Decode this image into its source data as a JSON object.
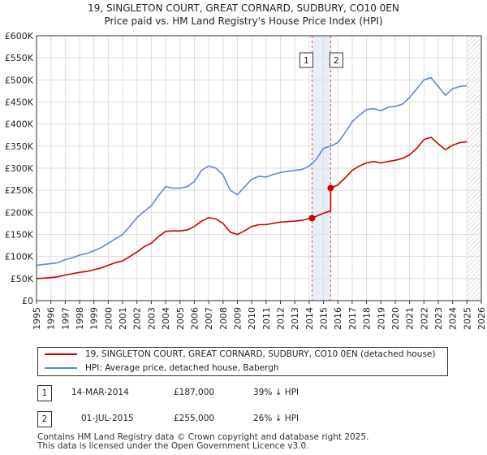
{
  "title": {
    "line1": "19, SINGLETON COURT, GREAT CORNARD, SUDBURY, CO10 0EN",
    "line2": "Price paid vs. HM Land Registry's House Price Index (HPI)"
  },
  "legend": {
    "property_label": "19, SINGLETON COURT, GREAT CORNARD, SUDBURY, CO10 0EN (detached house)",
    "hpi_label": "HPI: Average price, detached house, Babergh"
  },
  "transactions": [
    {
      "number": "1",
      "date": "14-MAR-2014",
      "price": "£187,000",
      "hpi_diff": "39% ↓ HPI"
    },
    {
      "number": "2",
      "date": "01-JUL-2015",
      "price": "£255,000",
      "hpi_diff": "26% ↓ HPI"
    }
  ],
  "footer": {
    "line1": "Contains HM Land Registry data © Crown copyright and database right 2025.",
    "line2": "This data is licensed under the Open Government Licence v3.0."
  },
  "colors": {
    "property": "#cc0000",
    "hpi": "#5b8ccc",
    "marker_band": "#e8eef8",
    "marker_line": "#cc0000",
    "future_hatch": "#bbbbbb"
  },
  "chart_data": {
    "type": "line",
    "xlabel": "",
    "ylabel": "",
    "xlim": [
      1995,
      2026
    ],
    "ylim": [
      0,
      600000
    ],
    "x_ticks": [
      "1995",
      "1996",
      "1997",
      "1998",
      "1999",
      "2000",
      "2001",
      "2002",
      "2003",
      "2004",
      "2005",
      "2006",
      "2007",
      "2008",
      "2009",
      "2010",
      "2011",
      "2012",
      "2013",
      "2014",
      "2015",
      "2016",
      "2017",
      "2018",
      "2019",
      "2020",
      "2021",
      "2022",
      "2023",
      "2024",
      "2025",
      "2026"
    ],
    "y_ticks": [
      {
        "value": 0,
        "label": "£0"
      },
      {
        "value": 50000,
        "label": "£50K"
      },
      {
        "value": 100000,
        "label": "£100K"
      },
      {
        "value": 150000,
        "label": "£150K"
      },
      {
        "value": 200000,
        "label": "£200K"
      },
      {
        "value": 250000,
        "label": "£250K"
      },
      {
        "value": 300000,
        "label": "£300K"
      },
      {
        "value": 350000,
        "label": "£350K"
      },
      {
        "value": 400000,
        "label": "£400K"
      },
      {
        "value": 450000,
        "label": "£450K"
      },
      {
        "value": 500000,
        "label": "£500K"
      },
      {
        "value": 550000,
        "label": "£550K"
      },
      {
        "value": 600000,
        "label": "£600K"
      }
    ],
    "series": [
      {
        "name": "HPI: Average price, detached house, Babergh",
        "x": [
          1995,
          1995.5,
          1996,
          1996.5,
          1997,
          1997.5,
          1998,
          1998.5,
          1999,
          1999.5,
          2000,
          2000.5,
          2001,
          2001.5,
          2002,
          2002.5,
          2003,
          2003.5,
          2004,
          2004.5,
          2005,
          2005.5,
          2006,
          2006.5,
          2007,
          2007.5,
          2008,
          2008.5,
          2009,
          2009.5,
          2010,
          2010.5,
          2011,
          2011.5,
          2012,
          2012.5,
          2013,
          2013.5,
          2014,
          2014.5,
          2015,
          2015.5,
          2016,
          2016.5,
          2017,
          2017.5,
          2018,
          2018.5,
          2019,
          2019.5,
          2020,
          2020.5,
          2021,
          2021.5,
          2022,
          2022.5,
          2023,
          2023.5,
          2024,
          2024.5,
          2025
        ],
        "values": [
          80000,
          82000,
          84000,
          86000,
          93000,
          97000,
          103000,
          107000,
          113000,
          120000,
          130000,
          140000,
          150000,
          168000,
          188000,
          202000,
          215000,
          238000,
          258000,
          255000,
          255000,
          258000,
          270000,
          295000,
          305000,
          300000,
          285000,
          250000,
          240000,
          258000,
          275000,
          282000,
          280000,
          286000,
          290000,
          293000,
          295000,
          297000,
          305000,
          320000,
          345000,
          350000,
          358000,
          380000,
          405000,
          420000,
          433000,
          435000,
          430000,
          438000,
          440000,
          445000,
          460000,
          480000,
          500000,
          505000,
          485000,
          465000,
          480000,
          485000,
          487000
        ]
      },
      {
        "name": "19, SINGLETON COURT, GREAT CORNARD, SUDBURY, CO10 0EN (detached house)",
        "x": [
          1995,
          1995.5,
          1996,
          1996.5,
          1997,
          1997.5,
          1998,
          1998.5,
          1999,
          1999.5,
          2000,
          2000.5,
          2001,
          2001.5,
          2002,
          2002.5,
          2003,
          2003.5,
          2004,
          2004.5,
          2005,
          2005.5,
          2006,
          2006.5,
          2007,
          2007.5,
          2008,
          2008.5,
          2009,
          2009.5,
          2010,
          2010.5,
          2011,
          2011.5,
          2012,
          2012.5,
          2013,
          2013.5,
          2014.2,
          2015.0,
          2015.5,
          2015.5,
          2016,
          2016.5,
          2017,
          2017.5,
          2018,
          2018.5,
          2019,
          2019.5,
          2020,
          2020.5,
          2021,
          2021.5,
          2022,
          2022.5,
          2023,
          2023.5,
          2024,
          2024.5,
          2025
        ],
        "values": [
          50000,
          51000,
          52000,
          54000,
          58000,
          61000,
          64000,
          66000,
          70000,
          74000,
          80000,
          86000,
          90000,
          100000,
          110000,
          122000,
          130000,
          145000,
          157000,
          158000,
          158000,
          160000,
          168000,
          180000,
          188000,
          185000,
          175000,
          155000,
          150000,
          158000,
          168000,
          172000,
          172000,
          175000,
          178000,
          179000,
          180000,
          182000,
          187000,
          198000,
          203000,
          255000,
          262000,
          278000,
          295000,
          305000,
          312000,
          315000,
          312000,
          315000,
          318000,
          322000,
          330000,
          345000,
          365000,
          370000,
          355000,
          342000,
          352000,
          358000,
          360000
        ]
      }
    ],
    "transactions": [
      {
        "label": "1",
        "x": 2014.2,
        "value": 187000
      },
      {
        "label": "2",
        "x": 2015.5,
        "value": 255000
      }
    ],
    "forecast_start": 2025.0
  }
}
